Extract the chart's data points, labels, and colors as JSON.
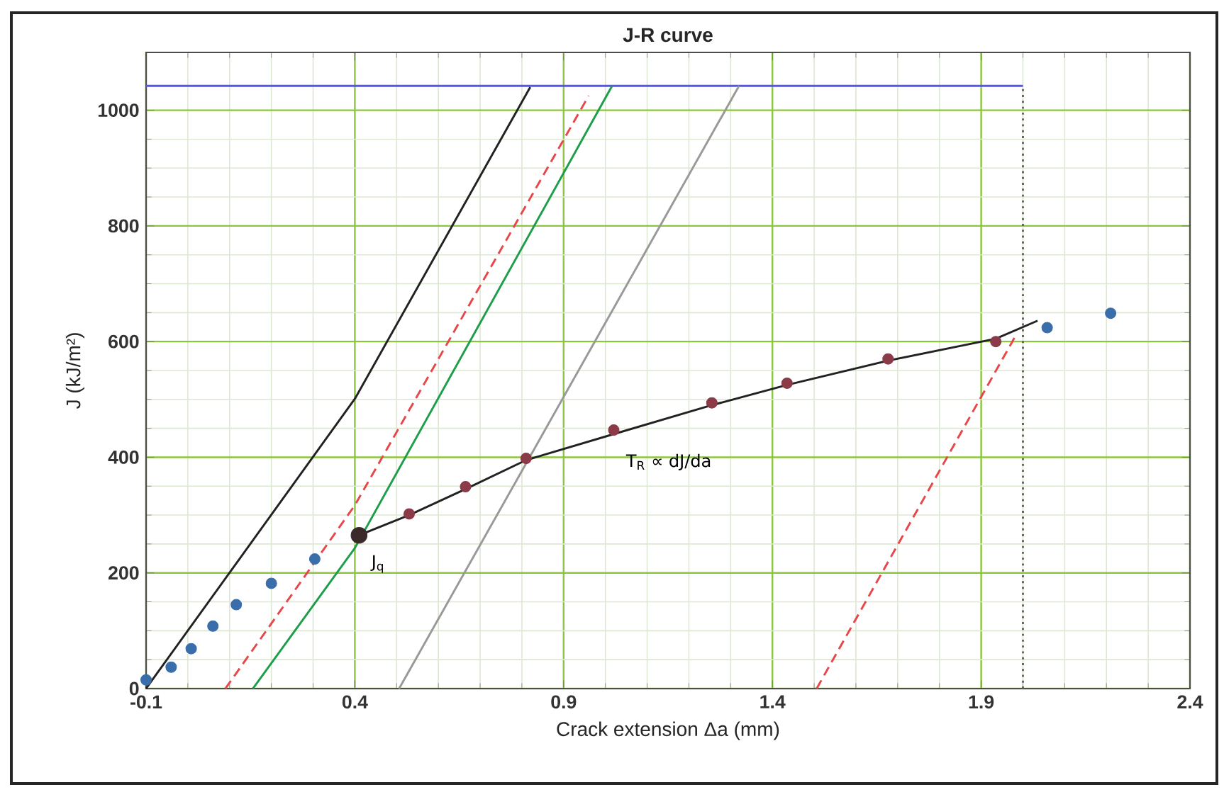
{
  "chart_data": {
    "type": "line",
    "title": "J-R curve",
    "xlabel": "Crack extension Δa (mm)",
    "ylabel": "J (kJ/m²)",
    "xlim": [
      -0.1,
      2.4
    ],
    "ylim": [
      0,
      1100
    ],
    "xticks": [
      -0.1,
      0.4,
      0.9,
      1.4,
      1.9,
      2.4
    ],
    "yticks": [
      0,
      200,
      400,
      600,
      800,
      1000
    ],
    "grid": true,
    "series": [
      {
        "type": "line",
        "color": "#5a5ad0",
        "line_style": "solid",
        "marker": "none",
        "x": [
          -0.1,
          2.0
        ],
        "values": [
          1042,
          1042
        ]
      },
      {
        "type": "line",
        "color": "#666666",
        "line_style": "dotted",
        "marker": "none",
        "x": [
          2.0,
          2.0
        ],
        "values": [
          0,
          1042
        ]
      },
      {
        "type": "line",
        "color": "#222222",
        "line_style": "solid",
        "marker": "none",
        "x": [
          -0.1,
          0.4,
          0.82
        ],
        "values": [
          0,
          501,
          1040
        ]
      },
      {
        "type": "line",
        "color": "#e8474a",
        "line_style": "dashed",
        "marker": "none",
        "x": [
          0.09,
          0.4,
          0.96
        ],
        "values": [
          0,
          317,
          1025
        ]
      },
      {
        "type": "line",
        "color": "#1e9e4a",
        "line_style": "solid",
        "marker": "none",
        "x": [
          0.156,
          0.4,
          1.016
        ],
        "values": [
          0,
          243,
          1042
        ]
      },
      {
        "type": "line",
        "color": "#999999",
        "line_style": "solid",
        "marker": "none",
        "x": [
          0.506,
          1.32
        ],
        "values": [
          0,
          1042
        ]
      },
      {
        "type": "line",
        "color": "#e8474a",
        "line_style": "dashed",
        "marker": "none",
        "x": [
          1.506,
          1.984
        ],
        "values": [
          0,
          612
        ]
      },
      {
        "type": "line",
        "color": "#222222",
        "line_style": "solid",
        "marker": "none",
        "x": [
          0.41,
          0.53,
          0.665,
          0.81,
          1.02,
          1.255,
          1.435,
          1.677,
          1.935,
          2.035
        ],
        "values": [
          265,
          300,
          345,
          395,
          440,
          490,
          525,
          567,
          605,
          636
        ]
      },
      {
        "type": "scatter",
        "color": "#3a6eaa",
        "marker": "circle",
        "x": [
          -0.1,
          -0.04,
          0.008,
          0.06,
          0.116,
          0.2,
          0.304,
          2.058,
          2.21
        ],
        "values": [
          15,
          37,
          69,
          108,
          145,
          182,
          224,
          624,
          649
        ]
      },
      {
        "type": "scatter",
        "color": "#8b3a48",
        "marker": "circle",
        "x": [
          0.53,
          0.665,
          0.81,
          1.02,
          1.255,
          1.435,
          1.677,
          1.935
        ],
        "values": [
          302,
          349,
          398,
          447,
          494,
          528,
          570,
          600
        ]
      },
      {
        "type": "scatter",
        "color": "#3a2a2a",
        "marker": "circle",
        "x": [
          0.41
        ],
        "values": [
          265
        ]
      }
    ],
    "annotations": [
      {
        "text": "J$_{q}$",
        "x": 0.41,
        "y": 265
      },
      {
        "text": "T$_{R}$ ∝ dJ/da",
        "x": 1.02,
        "y": 440
      }
    ]
  }
}
